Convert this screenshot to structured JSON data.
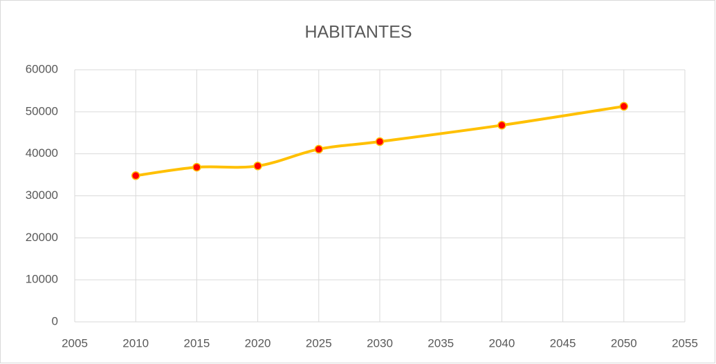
{
  "chart_data": {
    "type": "scatter",
    "title": "HABITANTES",
    "series": [
      {
        "color": "#ffc000",
        "marker_color": "#ff0000",
        "smooth": true,
        "x": [
          2010,
          2015,
          2020,
          2025,
          2030,
          2040,
          2050
        ],
        "values": [
          34800,
          36800,
          37100,
          41100,
          42900,
          46800,
          51300
        ]
      }
    ],
    "xlim": [
      2005,
      2055
    ],
    "xticks": [
      2005,
      2010,
      2015,
      2020,
      2025,
      2030,
      2035,
      2040,
      2045,
      2050,
      2055
    ],
    "ylim": [
      0,
      60000
    ],
    "yticks": [
      0,
      10000,
      20000,
      30000,
      40000,
      50000,
      60000
    ],
    "grid": true
  }
}
